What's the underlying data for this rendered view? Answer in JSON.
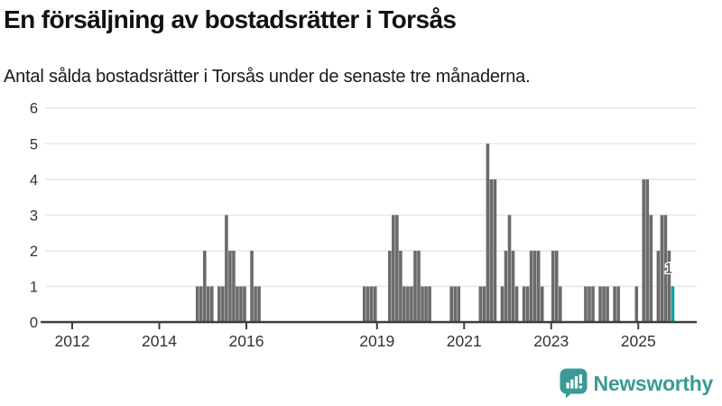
{
  "title": "En försäljning av bostadsrätter i Torsås",
  "subtitle": "Antal sålda bostadsrätter i Torsås under de senaste tre månaderna.",
  "chart_data": {
    "type": "bar",
    "title": "En försäljning av bostadsrätter i Torsås",
    "subtitle": "Antal sålda bostadsrätter i Torsås under de senaste tre månaderna.",
    "ylabel": "",
    "xlabel": "",
    "y_axis": {
      "ticks": [
        0,
        1,
        2,
        3,
        4,
        5,
        6
      ],
      "min": 0,
      "max": 6,
      "grid": true
    },
    "x_axis": {
      "tick_years": [
        2012,
        2014,
        2016,
        2019,
        2021,
        2023,
        2025
      ],
      "range_start_year": 2011.3,
      "range_end_year": 2026.3,
      "resolution": "monthly"
    },
    "zero_months_implied": true,
    "points": [
      [
        "2014-11",
        1
      ],
      [
        "2014-12",
        1
      ],
      [
        "2015-01",
        2
      ],
      [
        "2015-02",
        1
      ],
      [
        "2015-03",
        1
      ],
      [
        "2015-05",
        1
      ],
      [
        "2015-06",
        1
      ],
      [
        "2015-07",
        3
      ],
      [
        "2015-08",
        2
      ],
      [
        "2015-09",
        2
      ],
      [
        "2015-10",
        1
      ],
      [
        "2015-11",
        1
      ],
      [
        "2015-12",
        1
      ],
      [
        "2016-02",
        2
      ],
      [
        "2016-03",
        1
      ],
      [
        "2016-04",
        1
      ],
      [
        "2018-09",
        1
      ],
      [
        "2018-10",
        1
      ],
      [
        "2018-11",
        1
      ],
      [
        "2018-12",
        1
      ],
      [
        "2019-04",
        2
      ],
      [
        "2019-05",
        3
      ],
      [
        "2019-06",
        3
      ],
      [
        "2019-07",
        2
      ],
      [
        "2019-08",
        1
      ],
      [
        "2019-09",
        1
      ],
      [
        "2019-10",
        1
      ],
      [
        "2019-11",
        2
      ],
      [
        "2019-12",
        2
      ],
      [
        "2020-01",
        1
      ],
      [
        "2020-02",
        1
      ],
      [
        "2020-03",
        1
      ],
      [
        "2020-09",
        1
      ],
      [
        "2020-10",
        1
      ],
      [
        "2020-11",
        1
      ],
      [
        "2021-05",
        1
      ],
      [
        "2021-06",
        1
      ],
      [
        "2021-07",
        5
      ],
      [
        "2021-08",
        4
      ],
      [
        "2021-09",
        4
      ],
      [
        "2021-11",
        1
      ],
      [
        "2021-12",
        2
      ],
      [
        "2022-01",
        3
      ],
      [
        "2022-02",
        2
      ],
      [
        "2022-03",
        1
      ],
      [
        "2022-05",
        1
      ],
      [
        "2022-06",
        1
      ],
      [
        "2022-07",
        2
      ],
      [
        "2022-08",
        2
      ],
      [
        "2022-09",
        2
      ],
      [
        "2022-10",
        1
      ],
      [
        "2023-01",
        2
      ],
      [
        "2023-02",
        2
      ],
      [
        "2023-03",
        1
      ],
      [
        "2023-10",
        1
      ],
      [
        "2023-11",
        1
      ],
      [
        "2023-12",
        1
      ],
      [
        "2024-02",
        1
      ],
      [
        "2024-03",
        1
      ],
      [
        "2024-04",
        1
      ],
      [
        "2024-06",
        1
      ],
      [
        "2024-07",
        1
      ],
      [
        "2024-12",
        1
      ],
      [
        "2025-02",
        4
      ],
      [
        "2025-03",
        4
      ],
      [
        "2025-04",
        3
      ],
      [
        "2025-06",
        2
      ],
      [
        "2025-07",
        3
      ],
      [
        "2025-08",
        3
      ],
      [
        "2025-09",
        2
      ],
      [
        "2025-10",
        1
      ]
    ],
    "highlight": {
      "month": "2025-10",
      "value": 1,
      "label": "1"
    },
    "colors": {
      "bar": "#6b6b6b",
      "highlight": "#10a0a3",
      "grid": "#e8e8e8",
      "axis": "#3d3d3d",
      "text": "#333333"
    }
  },
  "branding": {
    "logo_text": "Newsworthy",
    "color": "#3a9a96",
    "icon": "newsworthy-bubble-chart-icon"
  }
}
